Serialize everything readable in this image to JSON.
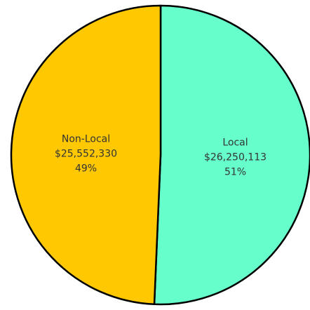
{
  "chart_data": {
    "type": "pie",
    "title": "",
    "start_angle_deg": 0,
    "direction": "clockwise",
    "slices": [
      {
        "label": "Local",
        "value": 26250113,
        "value_text": "$26,250,113",
        "percent_text": "51%",
        "color": "#66FFCC"
      },
      {
        "label": "Non-Local",
        "value": 25552330,
        "value_text": "$25,552,330",
        "percent_text": "49%",
        "color": "#FFC800"
      }
    ],
    "legend": "none",
    "data_labels": "inside"
  }
}
